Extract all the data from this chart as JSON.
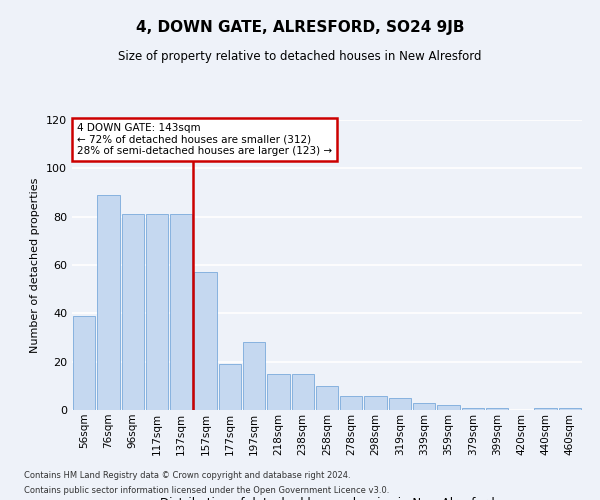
{
  "title": "4, DOWN GATE, ALRESFORD, SO24 9JB",
  "subtitle": "Size of property relative to detached houses in New Alresford",
  "xlabel": "Distribution of detached houses by size in New Alresford",
  "ylabel": "Number of detached properties",
  "bar_labels": [
    "56sqm",
    "76sqm",
    "96sqm",
    "117sqm",
    "137sqm",
    "157sqm",
    "177sqm",
    "197sqm",
    "218sqm",
    "238sqm",
    "258sqm",
    "278sqm",
    "298sqm",
    "319sqm",
    "339sqm",
    "359sqm",
    "379sqm",
    "399sqm",
    "420sqm",
    "440sqm",
    "460sqm"
  ],
  "bar_values": [
    39,
    89,
    81,
    81,
    81,
    57,
    19,
    28,
    15,
    15,
    10,
    6,
    6,
    5,
    3,
    2,
    1,
    1,
    0,
    1,
    1
  ],
  "bar_color": "#c5d8f0",
  "bar_edge_color": "#7aaadc",
  "background_color": "#eef2f9",
  "grid_color": "#ffffff",
  "ylim": [
    0,
    120
  ],
  "yticks": [
    0,
    20,
    40,
    60,
    80,
    100,
    120
  ],
  "vline_color": "#cc0000",
  "annotation_text": "4 DOWN GATE: 143sqm\n← 72% of detached houses are smaller (312)\n28% of semi-detached houses are larger (123) →",
  "annotation_box_color": "#ffffff",
  "annotation_box_edge": "#cc0000",
  "footer1": "Contains HM Land Registry data © Crown copyright and database right 2024.",
  "footer2": "Contains public sector information licensed under the Open Government Licence v3.0."
}
